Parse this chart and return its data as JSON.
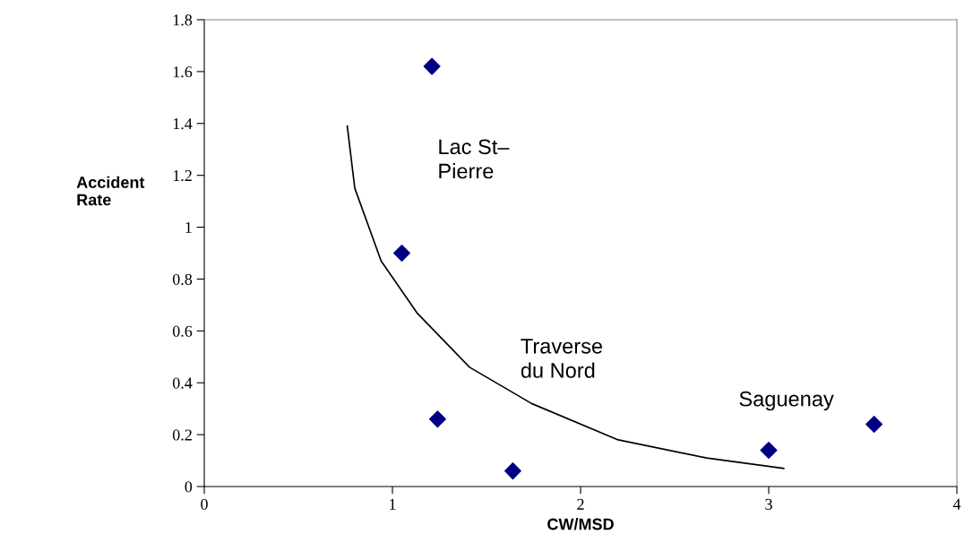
{
  "chart_data": {
    "type": "scatter",
    "xlabel": "CW/MSD",
    "ylabel": "Accident\nRate",
    "xlim": [
      0,
      4
    ],
    "ylim": [
      0,
      1.8
    ],
    "xticks": [
      0,
      1,
      2,
      3,
      4
    ],
    "yticks": [
      0,
      0.2,
      0.4,
      0.6,
      0.8,
      1,
      1.2,
      1.4,
      1.6,
      1.8
    ],
    "grid": false,
    "legend": false,
    "series": [
      {
        "color": "#000080",
        "marker": "diamond",
        "x": [
          1.21,
          1.05,
          1.24,
          1.64,
          3.0,
          3.56
        ],
        "values": [
          1.62,
          0.9,
          0.26,
          0.06,
          0.14,
          0.24
        ]
      },
      {
        "type": "line",
        "color": "#000000",
        "marker": "none",
        "line_style": "solid",
        "x": [
          0.76,
          0.8,
          0.94,
          1.13,
          1.41,
          1.74,
          2.2,
          2.67,
          3.08
        ],
        "values": [
          1.39,
          1.15,
          0.87,
          0.67,
          0.46,
          0.32,
          0.18,
          0.11,
          0.07
        ]
      }
    ],
    "annotations": [
      "Lac St–\nPierre",
      "Traverse\ndu Nord",
      "Saguenay"
    ]
  }
}
